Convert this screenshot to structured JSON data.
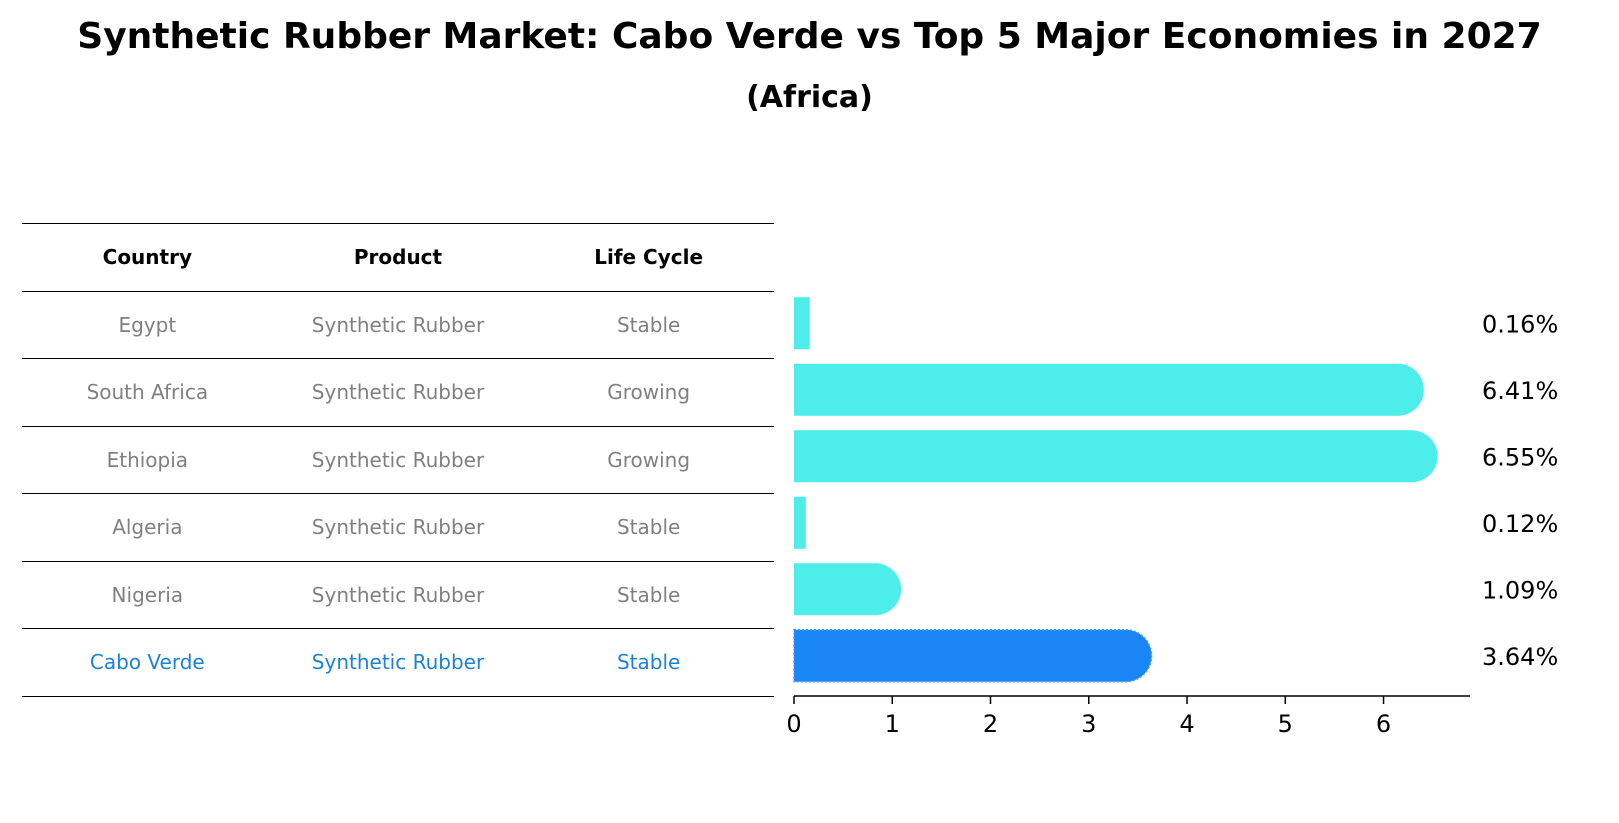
{
  "title": "Synthetic Rubber Market: Cabo Verde vs Top 5 Major Economies in 2027",
  "subtitle": "(Africa)",
  "table": {
    "headers": [
      "Country",
      "Product",
      "Life Cycle"
    ],
    "rows": [
      {
        "country": "Egypt",
        "product": "Synthetic Rubber",
        "life_cycle": "Stable"
      },
      {
        "country": "South Africa",
        "product": "Synthetic Rubber",
        "life_cycle": "Growing"
      },
      {
        "country": "Ethiopia",
        "product": "Synthetic Rubber",
        "life_cycle": "Growing"
      },
      {
        "country": "Algeria",
        "product": "Synthetic Rubber",
        "life_cycle": "Stable"
      },
      {
        "country": "Nigeria",
        "product": "Synthetic Rubber",
        "life_cycle": "Stable"
      },
      {
        "country": "Cabo Verde",
        "product": "Synthetic Rubber",
        "life_cycle": "Stable"
      }
    ]
  },
  "colors": {
    "bar": "#4deeea",
    "highlight_bar": "#1a85f5",
    "highlight_text": "#1a82d8"
  },
  "chart_data": {
    "type": "bar",
    "orientation": "horizontal",
    "categories": [
      "Egypt",
      "South Africa",
      "Ethiopia",
      "Algeria",
      "Nigeria",
      "Cabo Verde"
    ],
    "values": [
      0.16,
      6.41,
      6.55,
      0.12,
      1.09,
      3.64
    ],
    "value_labels": [
      "0.16%",
      "6.41%",
      "6.55%",
      "0.12%",
      "1.09%",
      "3.64%"
    ],
    "highlight": "Cabo Verde",
    "xlim": [
      0,
      6.88
    ],
    "xticks": [
      0,
      1,
      2,
      3,
      4,
      5,
      6
    ],
    "xlabel": "",
    "ylabel": "",
    "grid": false
  }
}
